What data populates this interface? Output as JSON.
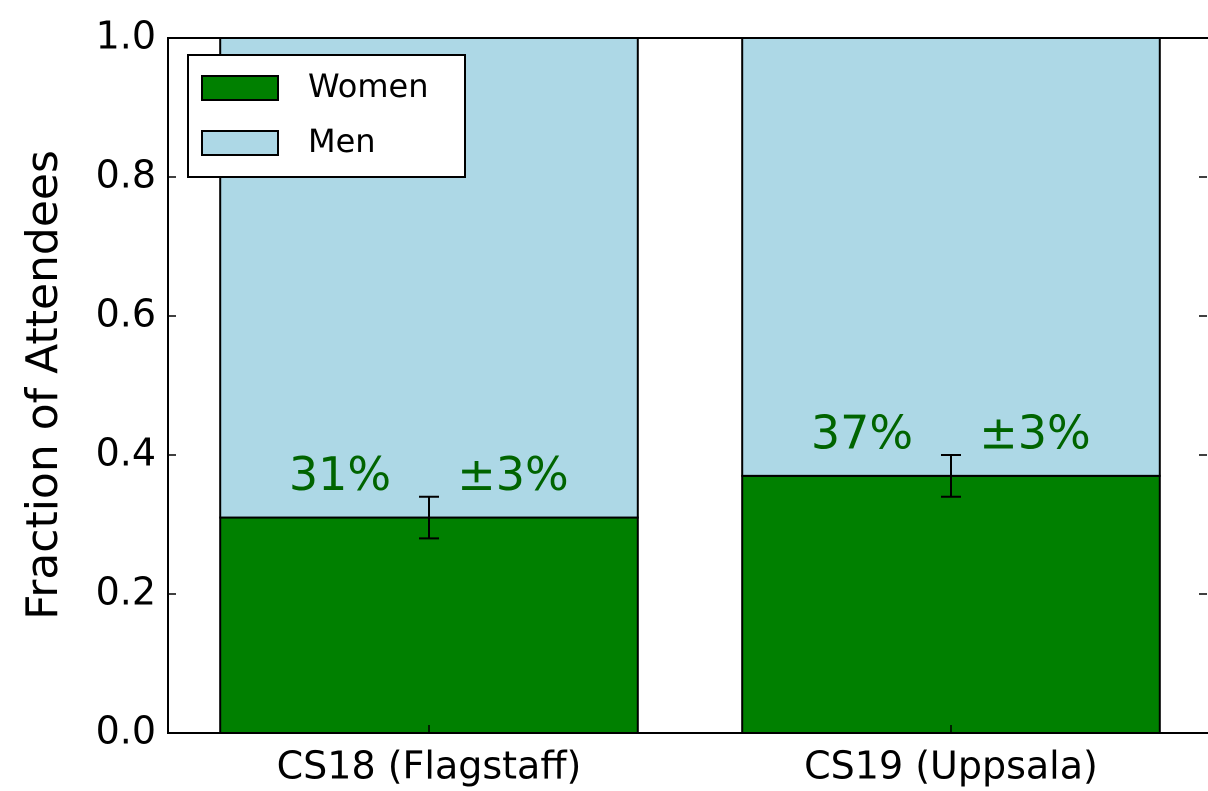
{
  "chart_data": {
    "type": "stacked_bar",
    "ylabel": "Fraction of Attendees",
    "categories": [
      "CS18 (Flagstaff)",
      "CS19 (Uppsala)"
    ],
    "series": [
      {
        "name": "Women",
        "color": "#008000",
        "values": [
          0.31,
          0.37
        ],
        "errors": [
          0.03,
          0.03
        ],
        "value_labels": [
          "31%",
          "37%"
        ],
        "error_labels": [
          "±3%",
          "±3%"
        ],
        "label_color": "#006400"
      },
      {
        "name": "Men",
        "color": "#add8e6",
        "values": [
          0.69,
          0.63
        ]
      }
    ],
    "ylim": [
      0,
      1
    ],
    "yticks": [
      {
        "value": 0,
        "label": "0.0"
      },
      0.2,
      0.4,
      0.6,
      0.8,
      {
        "value": 1,
        "label": "1.0"
      }
    ],
    "legend": "upper left"
  }
}
